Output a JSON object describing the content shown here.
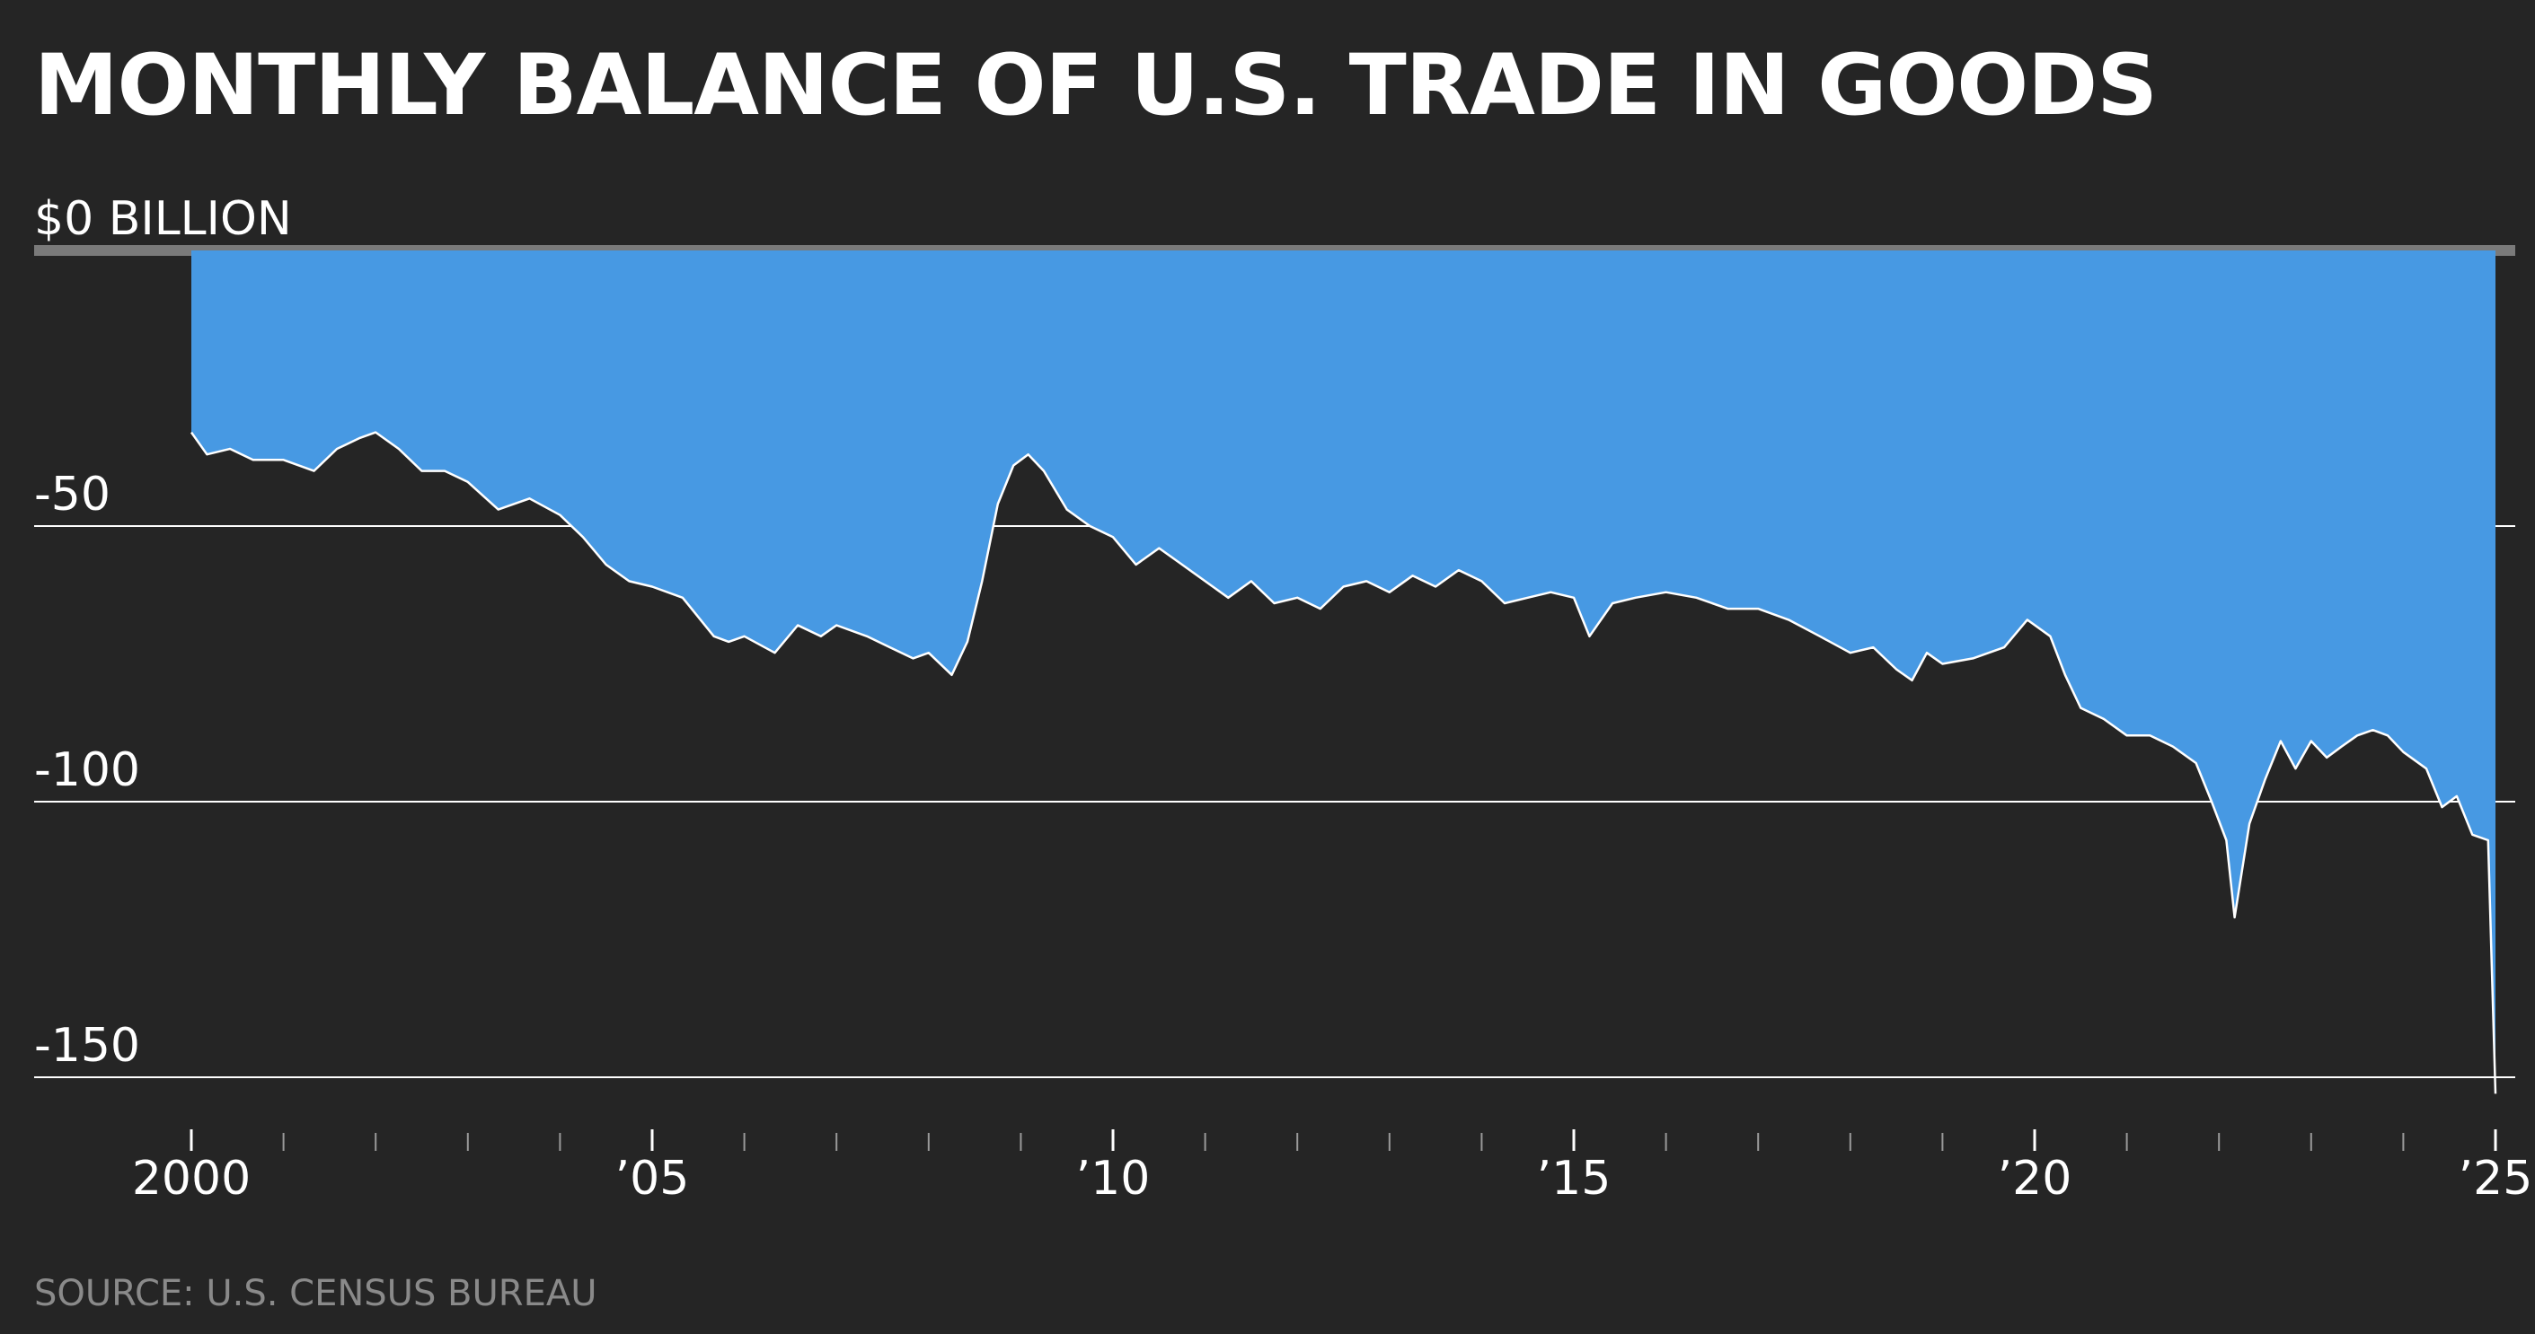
{
  "colors": {
    "background": "#252525",
    "area_fill": "#4799e3",
    "line": "#ffffff",
    "zero_line": "#7a7a7a",
    "gridline": "#ffffff",
    "tick": "#9a9a9a",
    "source_text": "#8a8a8a"
  },
  "chart_data": {
    "type": "area",
    "title": "MONTHLY BALANCE OF U.S. TRADE IN GOODS",
    "source": "SOURCE: U.S. CENSUS BUREAU",
    "ylim": [
      -155,
      0
    ],
    "xlim": [
      2000,
      2025
    ],
    "y_ticks": [
      {
        "value": 0,
        "label": "$0 BILLION"
      },
      {
        "value": -50,
        "label": "-50"
      },
      {
        "value": -100,
        "label": "-100"
      },
      {
        "value": -150,
        "label": "-150"
      }
    ],
    "x_ticks": [
      {
        "value": 2000,
        "label": "2000"
      },
      {
        "value": 2005,
        "label": "’05"
      },
      {
        "value": 2010,
        "label": "’10"
      },
      {
        "value": 2015,
        "label": "’15"
      },
      {
        "value": 2020,
        "label": "’20"
      },
      {
        "value": 2025,
        "label": "’25"
      }
    ],
    "minor_x_ticks": [
      2001,
      2002,
      2003,
      2004,
      2006,
      2007,
      2008,
      2009,
      2011,
      2012,
      2013,
      2014,
      2016,
      2017,
      2018,
      2019,
      2021,
      2022,
      2023,
      2024
    ],
    "grid": true,
    "series": [
      {
        "values": [
          [
            2000.0,
            -33
          ],
          [
            2000.17,
            -37
          ],
          [
            2000.42,
            -36
          ],
          [
            2000.67,
            -38
          ],
          [
            2001.0,
            -38
          ],
          [
            2001.33,
            -40
          ],
          [
            2001.58,
            -36
          ],
          [
            2001.83,
            -34
          ],
          [
            2002.0,
            -33
          ],
          [
            2002.25,
            -36
          ],
          [
            2002.5,
            -40
          ],
          [
            2002.75,
            -40
          ],
          [
            2003.0,
            -42
          ],
          [
            2003.33,
            -47
          ],
          [
            2003.67,
            -45
          ],
          [
            2004.0,
            -48
          ],
          [
            2004.25,
            -52
          ],
          [
            2004.5,
            -57
          ],
          [
            2004.75,
            -60
          ],
          [
            2005.0,
            -61
          ],
          [
            2005.33,
            -63
          ],
          [
            2005.67,
            -70
          ],
          [
            2005.83,
            -71
          ],
          [
            2006.0,
            -70
          ],
          [
            2006.33,
            -73
          ],
          [
            2006.58,
            -68
          ],
          [
            2006.83,
            -70
          ],
          [
            2007.0,
            -68
          ],
          [
            2007.33,
            -70
          ],
          [
            2007.58,
            -72
          ],
          [
            2007.83,
            -74
          ],
          [
            2008.0,
            -73
          ],
          [
            2008.25,
            -77
          ],
          [
            2008.42,
            -71
          ],
          [
            2008.58,
            -60
          ],
          [
            2008.75,
            -46
          ],
          [
            2008.92,
            -39
          ],
          [
            2009.08,
            -37
          ],
          [
            2009.25,
            -40
          ],
          [
            2009.5,
            -47
          ],
          [
            2009.75,
            -50
          ],
          [
            2010.0,
            -52
          ],
          [
            2010.25,
            -57
          ],
          [
            2010.5,
            -54
          ],
          [
            2010.75,
            -57
          ],
          [
            2011.0,
            -60
          ],
          [
            2011.25,
            -63
          ],
          [
            2011.5,
            -60
          ],
          [
            2011.75,
            -64
          ],
          [
            2012.0,
            -63
          ],
          [
            2012.25,
            -65
          ],
          [
            2012.5,
            -61
          ],
          [
            2012.75,
            -60
          ],
          [
            2013.0,
            -62
          ],
          [
            2013.25,
            -59
          ],
          [
            2013.5,
            -61
          ],
          [
            2013.75,
            -58
          ],
          [
            2014.0,
            -60
          ],
          [
            2014.25,
            -64
          ],
          [
            2014.5,
            -63
          ],
          [
            2014.75,
            -62
          ],
          [
            2015.0,
            -63
          ],
          [
            2015.17,
            -70
          ],
          [
            2015.42,
            -64
          ],
          [
            2015.67,
            -63
          ],
          [
            2016.0,
            -62
          ],
          [
            2016.33,
            -63
          ],
          [
            2016.67,
            -65
          ],
          [
            2017.0,
            -65
          ],
          [
            2017.33,
            -67
          ],
          [
            2017.67,
            -70
          ],
          [
            2018.0,
            -73
          ],
          [
            2018.25,
            -72
          ],
          [
            2018.5,
            -76
          ],
          [
            2018.67,
            -78
          ],
          [
            2018.83,
            -73
          ],
          [
            2019.0,
            -75
          ],
          [
            2019.33,
            -74
          ],
          [
            2019.67,
            -72
          ],
          [
            2019.92,
            -67
          ],
          [
            2020.17,
            -70
          ],
          [
            2020.33,
            -77
          ],
          [
            2020.5,
            -83
          ],
          [
            2020.75,
            -85
          ],
          [
            2021.0,
            -88
          ],
          [
            2021.25,
            -88
          ],
          [
            2021.5,
            -90
          ],
          [
            2021.75,
            -93
          ],
          [
            2021.92,
            -100
          ],
          [
            2022.08,
            -107
          ],
          [
            2022.17,
            -121
          ],
          [
            2022.33,
            -104
          ],
          [
            2022.5,
            -96
          ],
          [
            2022.67,
            -89
          ],
          [
            2022.83,
            -94
          ],
          [
            2023.0,
            -89
          ],
          [
            2023.17,
            -92
          ],
          [
            2023.33,
            -90
          ],
          [
            2023.5,
            -88
          ],
          [
            2023.67,
            -87
          ],
          [
            2023.83,
            -88
          ],
          [
            2024.0,
            -91
          ],
          [
            2024.25,
            -94
          ],
          [
            2024.42,
            -101
          ],
          [
            2024.58,
            -99
          ],
          [
            2024.75,
            -106
          ],
          [
            2024.92,
            -107
          ],
          [
            2025.0,
            -153
          ]
        ]
      }
    ]
  }
}
